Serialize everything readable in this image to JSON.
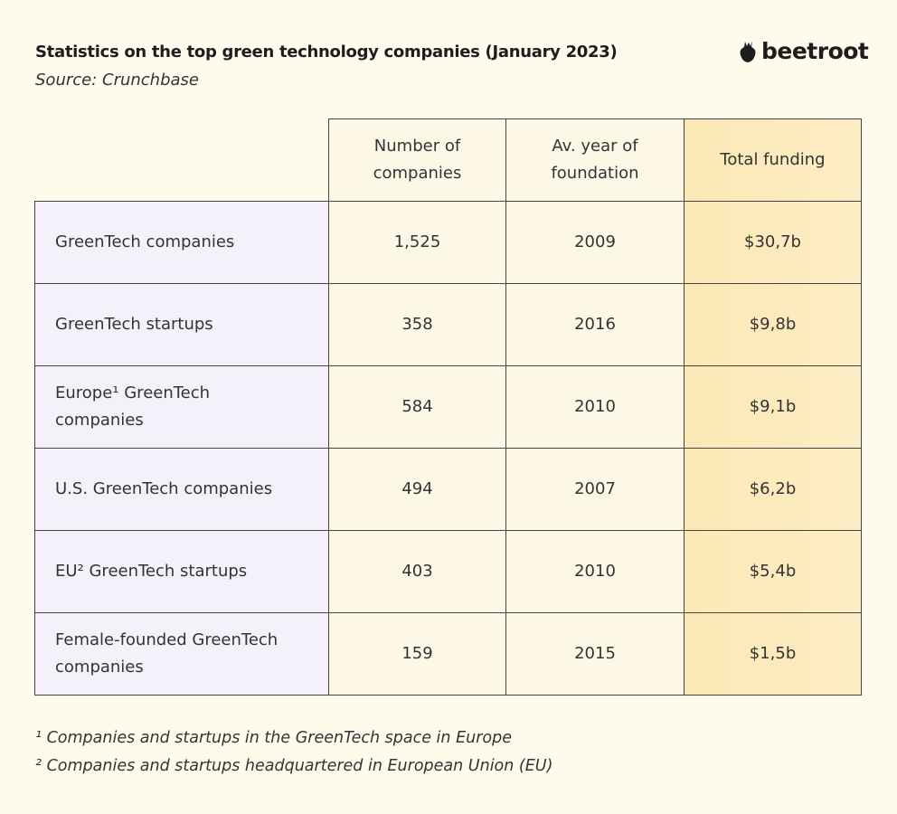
{
  "title": "Statistics on the top green technology companies (January 2023)",
  "source": "Source: Crunchbase",
  "logo": "beetroot",
  "table": {
    "headers": [
      "Number of companies",
      "Av. year of foundation",
      "Total funding"
    ],
    "rows": [
      {
        "label": "GreenTech companies",
        "count": "1,525",
        "year": "2009",
        "funding": "$30,7b"
      },
      {
        "label": "GreenTech startups",
        "count": "358",
        "year": "2016",
        "funding": "$9,8b"
      },
      {
        "label": "Europe¹  GreenTech companies",
        "count": "584",
        "year": "2010",
        "funding": "$9,1b"
      },
      {
        "label": "U.S. GreenTech companies",
        "count": "494",
        "year": "2007",
        "funding": "$6,2b"
      },
      {
        "label": "EU² GreenTech startups",
        "count": "403",
        "year": "2010",
        "funding": "$5,4b"
      },
      {
        "label": "Female-founded GreenTech companies",
        "count": "159",
        "year": "2015",
        "funding": "$1,5b"
      }
    ]
  },
  "footnotes": [
    "¹ Companies and startups in the GreenTech space in Europe",
    "² Companies and startups headquartered in European Union (EU)"
  ]
}
